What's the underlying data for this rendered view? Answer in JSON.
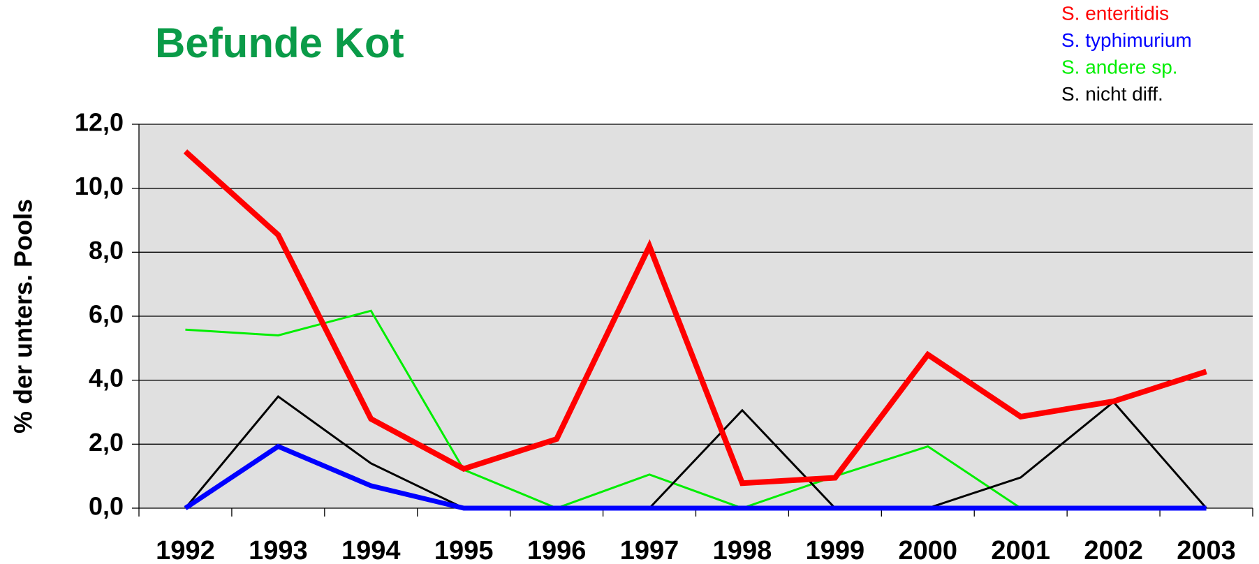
{
  "chart_data": {
    "type": "line",
    "title": "Befunde Kot",
    "y_label": "% der unters. Pools",
    "categories": [
      "1992",
      "1993",
      "1994",
      "1995",
      "1996",
      "1997",
      "1998",
      "1999",
      "2000",
      "2001",
      "2002",
      "2003"
    ],
    "series": [
      {
        "name": "S. enteritidis",
        "color": "#ff0000",
        "values": [
          11.15,
          8.54,
          2.79,
          1.23,
          2.16,
          8.19,
          0.78,
          0.95,
          4.8,
          2.86,
          3.34,
          4.27
        ]
      },
      {
        "name": "S. typhimurium",
        "color": "#0000ff",
        "values": [
          0,
          1.93,
          0.7,
          0,
          0,
          0,
          0,
          0,
          0,
          0,
          0,
          0
        ]
      },
      {
        "name": "S. andere sp.",
        "color": "#00ee00",
        "values": [
          5.58,
          5.4,
          6.17,
          1.2,
          0,
          1.05,
          0,
          1.0,
          1.93,
          0,
          0,
          0
        ]
      },
      {
        "name": "S. nicht diff.",
        "color": "#000000",
        "values": [
          0,
          3.49,
          1.4,
          0,
          0,
          0,
          3.06,
          0,
          0,
          0.96,
          3.32,
          0
        ]
      }
    ],
    "ylim": [
      0,
      12
    ],
    "yticks": [
      {
        "value": 0,
        "label": "0,0"
      },
      {
        "value": 2,
        "label": "2,0"
      },
      {
        "value": 4,
        "label": "4,0"
      },
      {
        "value": 6,
        "label": "6,0"
      },
      {
        "value": 8,
        "label": "8,0"
      },
      {
        "value": 10,
        "label": "10,0"
      },
      {
        "value": 12,
        "label": "12,0"
      }
    ],
    "grid": true,
    "legend": "top-right"
  }
}
